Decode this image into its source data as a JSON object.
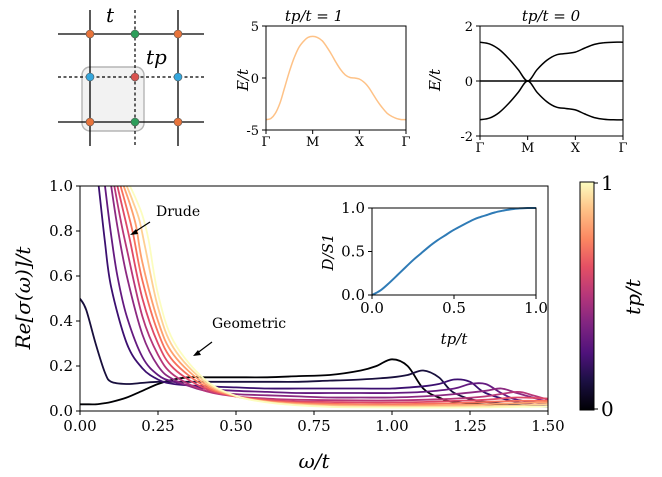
{
  "lattice": {
    "label_t": "t",
    "label_tp": "tp",
    "colors": {
      "orange": "#e8743b",
      "green": "#2e9e5b",
      "blue": "#35a7dd",
      "red": "#d9534f"
    }
  },
  "chart_data": [
    {
      "type": "line",
      "panel": "band-structure-tp1",
      "title": "tp/t = 1",
      "ylabel": "E/t",
      "xticklabels": [
        "Γ",
        "M",
        "X",
        "Γ"
      ],
      "yticks": [
        -5,
        0,
        5
      ],
      "ylim": [
        -5,
        5
      ],
      "series": [
        {
          "x": [
            0,
            0.1,
            0.2,
            0.3,
            0.4,
            0.5,
            0.6,
            0.7,
            0.8,
            0.9,
            1.0,
            1.1,
            1.2,
            1.3,
            1.4,
            1.5,
            1.6,
            1.7,
            1.8,
            1.9,
            2.0,
            2.1,
            2.2,
            2.3,
            2.4,
            2.5,
            2.6,
            2.7,
            2.8,
            2.9,
            3.0
          ],
          "y": [
            -4.0,
            -3.9,
            -3.4,
            -2.4,
            -0.9,
            0.6,
            1.9,
            2.9,
            3.5,
            3.9,
            4.0,
            3.9,
            3.6,
            3.0,
            2.3,
            1.5,
            0.8,
            0.3,
            0.05,
            0.0,
            -0.1,
            -0.4,
            -0.9,
            -1.6,
            -2.3,
            -2.9,
            -3.4,
            -3.7,
            -3.9,
            -4.0,
            -4.0
          ],
          "color": "#fec287"
        }
      ]
    },
    {
      "type": "line",
      "panel": "band-structure-tp0",
      "title": "tp/t = 0",
      "ylabel": "E/t",
      "xticklabels": [
        "Γ",
        "M",
        "X",
        "Γ"
      ],
      "yticks": [
        -2,
        0,
        2
      ],
      "ylim": [
        -2,
        2
      ],
      "series": [
        {
          "x": [
            0,
            0.2,
            0.4,
            0.6,
            0.8,
            1.0,
            1.2,
            1.4,
            1.6,
            1.8,
            2.0,
            2.2,
            2.4,
            2.6,
            2.8,
            3.0
          ],
          "y": [
            1.41,
            1.35,
            1.15,
            0.82,
            0.42,
            0.0,
            0.42,
            0.75,
            0.95,
            1.0,
            1.05,
            1.2,
            1.33,
            1.39,
            1.41,
            1.41
          ],
          "color": "#000000"
        },
        {
          "x": [
            0,
            0.2,
            0.4,
            0.6,
            0.8,
            1.0,
            1.2,
            1.4,
            1.6,
            1.8,
            2.0,
            2.2,
            2.4,
            2.6,
            2.8,
            3.0
          ],
          "y": [
            -1.41,
            -1.35,
            -1.15,
            -0.82,
            -0.42,
            0.0,
            -0.42,
            -0.75,
            -0.95,
            -1.0,
            -1.05,
            -1.2,
            -1.33,
            -1.39,
            -1.41,
            -1.41
          ],
          "color": "#000000"
        },
        {
          "x": [
            0,
            3.0
          ],
          "y": [
            0,
            0
          ],
          "color": "#000000"
        }
      ]
    },
    {
      "type": "line",
      "panel": "optical-conductivity",
      "xlabel": "ω/t",
      "ylabel": "Re[σ(ω)]/t",
      "xlim": [
        0,
        1.5
      ],
      "ylim": [
        0,
        1.0
      ],
      "xticks": [
        "0.00",
        "0.25",
        "0.50",
        "0.75",
        "1.00",
        "1.25",
        "1.50"
      ],
      "yticks": [
        "0.0",
        "0.2",
        "0.4",
        "0.6",
        "0.8",
        "1.0"
      ],
      "annotations": [
        "Drude",
        "Geometric"
      ],
      "colorbar": {
        "label": "tp/t",
        "min": "0",
        "max": "1"
      },
      "series": [
        {
          "x": [
            0.0,
            0.02,
            0.05,
            0.08,
            0.1,
            0.15,
            0.2,
            0.25,
            0.3,
            0.35,
            0.4,
            0.5,
            0.6,
            0.7,
            0.8,
            0.9,
            0.95,
            1.0,
            1.05,
            1.1,
            1.15,
            1.2,
            1.3,
            1.5
          ],
          "y": [
            0.03,
            0.03,
            0.03,
            0.035,
            0.04,
            0.06,
            0.09,
            0.12,
            0.14,
            0.15,
            0.15,
            0.15,
            0.15,
            0.155,
            0.16,
            0.18,
            0.2,
            0.23,
            0.2,
            0.1,
            0.06,
            0.04,
            0.03,
            0.02
          ],
          "color": "#000004"
        },
        {
          "x": [
            0.0,
            0.02,
            0.05,
            0.08,
            0.1,
            0.15,
            0.2,
            0.25,
            0.3,
            0.4,
            0.5,
            0.6,
            0.7,
            0.8,
            0.9,
            1.0,
            1.05,
            1.1,
            1.15,
            1.2,
            1.3,
            1.5
          ],
          "y": [
            0.5,
            0.45,
            0.3,
            0.17,
            0.13,
            0.12,
            0.125,
            0.13,
            0.13,
            0.13,
            0.13,
            0.13,
            0.13,
            0.135,
            0.14,
            0.15,
            0.16,
            0.18,
            0.15,
            0.08,
            0.04,
            0.02
          ],
          "color": "#180f3d"
        },
        {
          "x": [
            0.06,
            0.08,
            0.1,
            0.15,
            0.2,
            0.25,
            0.3,
            0.4,
            0.5,
            0.6,
            0.7,
            0.8,
            0.9,
            1.0,
            1.1,
            1.15,
            1.2,
            1.25,
            1.3,
            1.4,
            1.5
          ],
          "y": [
            1.0,
            0.75,
            0.55,
            0.3,
            0.19,
            0.14,
            0.12,
            0.11,
            0.105,
            0.1,
            0.1,
            0.1,
            0.1,
            0.1,
            0.11,
            0.12,
            0.14,
            0.13,
            0.08,
            0.04,
            0.02
          ],
          "color": "#3b0f70"
        },
        {
          "x": [
            0.08,
            0.1,
            0.12,
            0.15,
            0.2,
            0.25,
            0.3,
            0.4,
            0.5,
            0.6,
            0.7,
            0.8,
            0.9,
            1.0,
            1.1,
            1.2,
            1.25,
            1.3,
            1.35,
            1.4,
            1.5
          ],
          "y": [
            1.0,
            0.78,
            0.6,
            0.42,
            0.24,
            0.16,
            0.13,
            0.1,
            0.09,
            0.085,
            0.08,
            0.08,
            0.08,
            0.08,
            0.085,
            0.1,
            0.12,
            0.12,
            0.08,
            0.05,
            0.03
          ],
          "color": "#641a80"
        },
        {
          "x": [
            0.1,
            0.12,
            0.15,
            0.2,
            0.25,
            0.3,
            0.4,
            0.5,
            0.6,
            0.7,
            0.8,
            0.9,
            1.0,
            1.1,
            1.2,
            1.3,
            1.35,
            1.4,
            1.45,
            1.5
          ],
          "y": [
            1.0,
            0.82,
            0.6,
            0.34,
            0.2,
            0.14,
            0.09,
            0.075,
            0.07,
            0.065,
            0.06,
            0.06,
            0.06,
            0.065,
            0.075,
            0.09,
            0.1,
            0.08,
            0.06,
            0.04
          ],
          "color": "#8c2981"
        },
        {
          "x": [
            0.11,
            0.13,
            0.15,
            0.2,
            0.25,
            0.3,
            0.4,
            0.5,
            0.6,
            0.7,
            0.8,
            0.9,
            1.0,
            1.1,
            1.2,
            1.3,
            1.4,
            1.45,
            1.5
          ],
          "y": [
            1.0,
            0.85,
            0.72,
            0.42,
            0.25,
            0.16,
            0.09,
            0.065,
            0.055,
            0.05,
            0.048,
            0.047,
            0.047,
            0.05,
            0.055,
            0.065,
            0.085,
            0.07,
            0.05
          ],
          "color": "#b73779"
        },
        {
          "x": [
            0.12,
            0.14,
            0.16,
            0.2,
            0.25,
            0.3,
            0.4,
            0.5,
            0.6,
            0.7,
            0.8,
            0.9,
            1.0,
            1.1,
            1.2,
            1.3,
            1.4,
            1.5
          ],
          "y": [
            1.0,
            0.88,
            0.76,
            0.5,
            0.3,
            0.19,
            0.1,
            0.065,
            0.05,
            0.042,
            0.04,
            0.038,
            0.038,
            0.04,
            0.045,
            0.05,
            0.06,
            0.055
          ],
          "color": "#de4968"
        },
        {
          "x": [
            0.13,
            0.15,
            0.17,
            0.2,
            0.25,
            0.3,
            0.4,
            0.5,
            0.6,
            0.7,
            0.8,
            0.9,
            1.0,
            1.1,
            1.2,
            1.3,
            1.4,
            1.5
          ],
          "y": [
            1.0,
            0.9,
            0.79,
            0.58,
            0.35,
            0.22,
            0.11,
            0.065,
            0.045,
            0.036,
            0.032,
            0.03,
            0.03,
            0.032,
            0.035,
            0.04,
            0.045,
            0.045
          ],
          "color": "#f7705c"
        },
        {
          "x": [
            0.14,
            0.16,
            0.18,
            0.2,
            0.25,
            0.3,
            0.4,
            0.5,
            0.6,
            0.7,
            0.8,
            0.9,
            1.0,
            1.1,
            1.2,
            1.3,
            1.4,
            1.5
          ],
          "y": [
            1.0,
            0.92,
            0.82,
            0.66,
            0.4,
            0.25,
            0.12,
            0.065,
            0.042,
            0.032,
            0.027,
            0.025,
            0.024,
            0.025,
            0.027,
            0.03,
            0.035,
            0.038
          ],
          "color": "#fe9f6d"
        },
        {
          "x": [
            0.15,
            0.17,
            0.19,
            0.21,
            0.25,
            0.3,
            0.4,
            0.5,
            0.6,
            0.7,
            0.8,
            0.9,
            1.0,
            1.1,
            1.2,
            1.3,
            1.4,
            1.5
          ],
          "y": [
            1.0,
            0.93,
            0.85,
            0.72,
            0.46,
            0.28,
            0.13,
            0.066,
            0.04,
            0.028,
            0.022,
            0.02,
            0.019,
            0.019,
            0.02,
            0.022,
            0.025,
            0.03
          ],
          "color": "#fecf92"
        },
        {
          "x": [
            0.16,
            0.18,
            0.2,
            0.22,
            0.25,
            0.3,
            0.4,
            0.5,
            0.6,
            0.7,
            0.8,
            0.9,
            1.0,
            1.1,
            1.2,
            1.3,
            1.4,
            1.5
          ],
          "y": [
            1.0,
            0.94,
            0.87,
            0.76,
            0.52,
            0.31,
            0.14,
            0.067,
            0.038,
            0.025,
            0.018,
            0.016,
            0.015,
            0.015,
            0.015,
            0.016,
            0.018,
            0.02
          ],
          "color": "#fcfdbf"
        }
      ]
    },
    {
      "type": "line",
      "panel": "drude-weight-inset",
      "xlabel": "tp/t",
      "ylabel": "D/S1",
      "xlim": [
        0,
        1.0
      ],
      "ylim": [
        0,
        1.0
      ],
      "xticks": [
        "0.0",
        "0.5",
        "1.0"
      ],
      "yticks": [
        "0.0",
        "0.5",
        "1.0"
      ],
      "series": [
        {
          "x": [
            0,
            0.05,
            0.1,
            0.15,
            0.2,
            0.25,
            0.3,
            0.35,
            0.4,
            0.45,
            0.5,
            0.55,
            0.6,
            0.65,
            0.7,
            0.75,
            0.8,
            0.85,
            0.9,
            0.95,
            1.0
          ],
          "y": [
            0.0,
            0.05,
            0.13,
            0.22,
            0.31,
            0.4,
            0.48,
            0.56,
            0.63,
            0.69,
            0.75,
            0.8,
            0.85,
            0.89,
            0.92,
            0.95,
            0.97,
            0.985,
            0.995,
            1.0,
            1.0
          ],
          "color": "#2f7bb6"
        }
      ]
    }
  ]
}
